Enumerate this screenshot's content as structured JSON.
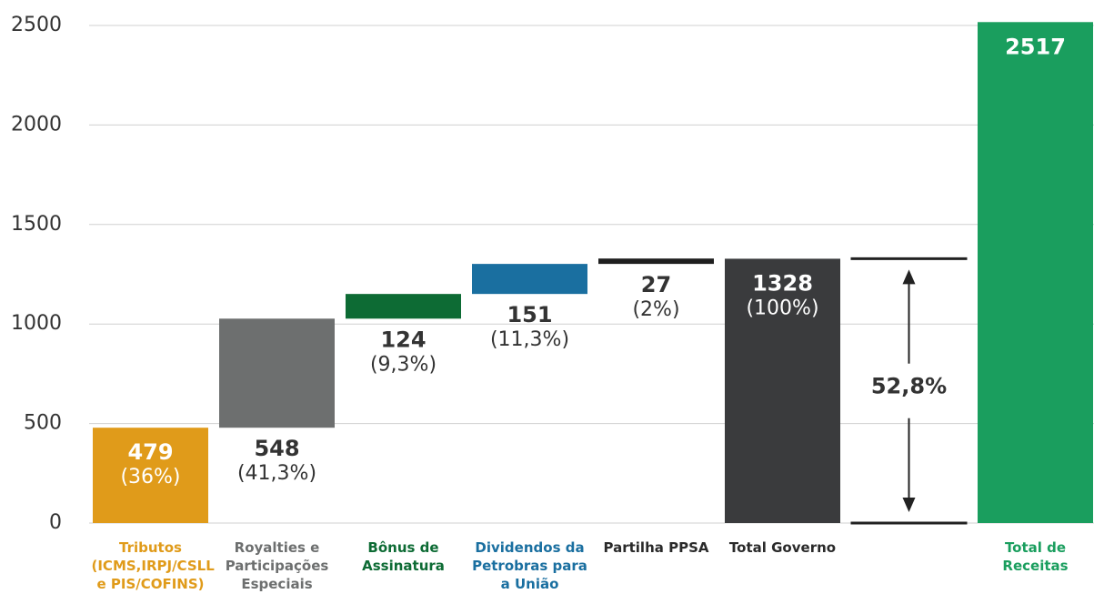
{
  "chart_data": {
    "type": "waterfall",
    "categories": [
      "Tributos (ICMS,IRPJ/CSLL e PIS/COFINS)",
      "Royalties e Participações Especiais",
      "Bônus de Assinatura",
      "Dividendos da Petrobras para a União",
      "Partilha PPSA",
      "Total Governo",
      null,
      "Total de Receitas"
    ],
    "values": [
      479,
      548,
      124,
      151,
      27,
      1328,
      null,
      2517
    ],
    "percent_labels": [
      "(36%)",
      "(41,3%)",
      "(9,3%)",
      "(11,3%)",
      "(2%)",
      "(100%)",
      null,
      null
    ],
    "kinds": [
      "step",
      "step",
      "step",
      "step",
      "step",
      "total",
      null,
      "total"
    ],
    "colors": [
      "#e09b1a",
      "#6d6f6f",
      "#0d6b34",
      "#1a6fa0",
      "#1f1f1f",
      "#3a3b3d",
      null,
      "#1a9e5e"
    ],
    "label_colors": [
      "#e09b1a",
      "#6d6f6f",
      "#0d6b34",
      "#1a6fa0",
      "#2a2a2a",
      "#2a2a2a",
      null,
      "#1a9e5e"
    ],
    "annotation": "52,8%",
    "ylim": [
      0,
      2500
    ],
    "yticks": [
      0,
      500,
      1000,
      1500,
      2000,
      2500
    ],
    "grid": true
  }
}
